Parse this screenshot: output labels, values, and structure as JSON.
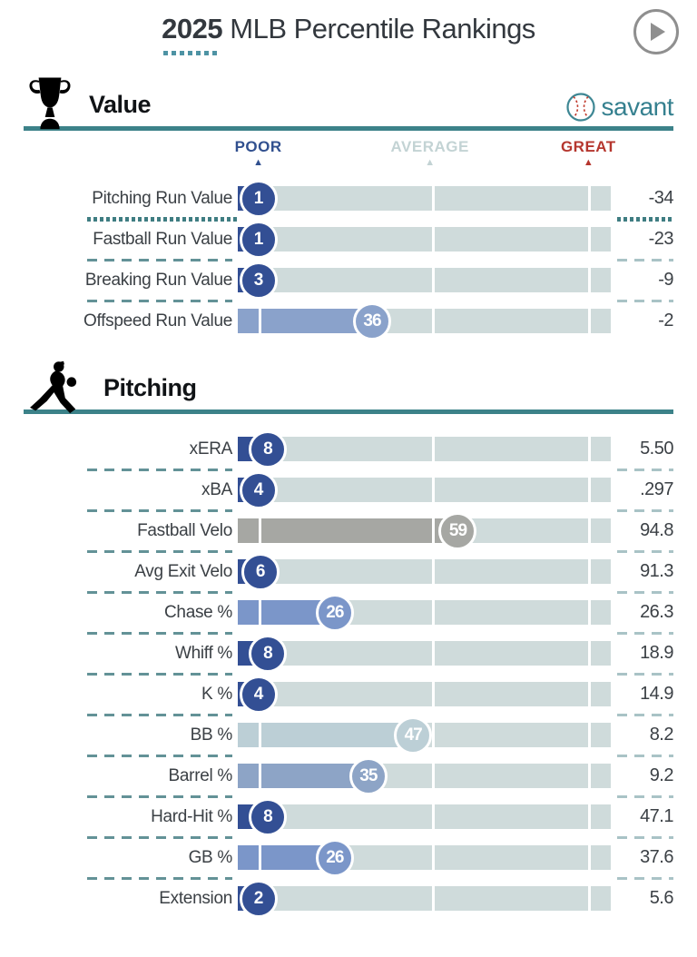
{
  "header": {
    "title_year": "2025",
    "title_rest": " MLB Percentile Rankings"
  },
  "branding": {
    "savant_label": "savant"
  },
  "legend": {
    "poor": "POOR",
    "average": "AVERAGE",
    "great": "GREAT"
  },
  "colors": {
    "poor_navy": "#334f94",
    "mid_blue": "#7b96c9",
    "muted_blue": "#8da4c6",
    "pale_blue": "#bccfd6",
    "average_gray": "#a6a7a3",
    "track": "#cfdbdb",
    "teal_rule": "#3c8289",
    "great_red": "#b5362e"
  },
  "sections": [
    {
      "title": "Value",
      "icon": "trophy-icon",
      "rows": [
        {
          "label": "Pitching Run Value",
          "percentile": 1,
          "value": "-34",
          "color": "#334f94",
          "dotted_separator": true
        },
        {
          "label": "Fastball Run Value",
          "percentile": 1,
          "value": "-23",
          "color": "#334f94"
        },
        {
          "label": "Breaking Run Value",
          "percentile": 3,
          "value": "-9",
          "color": "#334f94"
        },
        {
          "label": "Offspeed Run Value",
          "percentile": 36,
          "value": "-2",
          "color": "#8aa2cb"
        }
      ]
    },
    {
      "title": "Pitching",
      "icon": "pitcher-icon",
      "rows": [
        {
          "label": "xERA",
          "percentile": 8,
          "value": "5.50",
          "color": "#334f94"
        },
        {
          "label": "xBA",
          "percentile": 4,
          "value": ".297",
          "color": "#334f94"
        },
        {
          "label": "Fastball Velo",
          "percentile": 59,
          "value": "94.8",
          "color": "#a6a7a3"
        },
        {
          "label": "Avg Exit Velo",
          "percentile": 6,
          "value": "91.3",
          "color": "#334f94"
        },
        {
          "label": "Chase %",
          "percentile": 26,
          "value": "26.3",
          "color": "#7b96c9"
        },
        {
          "label": "Whiff %",
          "percentile": 8,
          "value": "18.9",
          "color": "#334f94"
        },
        {
          "label": "K %",
          "percentile": 4,
          "value": "14.9",
          "color": "#334f94"
        },
        {
          "label": "BB %",
          "percentile": 47,
          "value": "8.2",
          "color": "#bccfd6"
        },
        {
          "label": "Barrel %",
          "percentile": 35,
          "value": "9.2",
          "color": "#8da4c6"
        },
        {
          "label": "Hard-Hit %",
          "percentile": 8,
          "value": "47.1",
          "color": "#334f94"
        },
        {
          "label": "GB %",
          "percentile": 26,
          "value": "37.6",
          "color": "#7b96c9"
        },
        {
          "label": "Extension",
          "percentile": 2,
          "value": "5.6",
          "color": "#334f94"
        }
      ]
    }
  ],
  "chart_data": [
    {
      "type": "bar",
      "title": "Value",
      "categories": [
        "Pitching Run Value",
        "Fastball Run Value",
        "Breaking Run Value",
        "Offspeed Run Value"
      ],
      "series": [
        {
          "name": "percentile",
          "values": [
            1,
            1,
            3,
            36
          ]
        },
        {
          "name": "raw_value",
          "values": [
            -34,
            -23,
            -9,
            -2
          ]
        }
      ],
      "xlabel": "percentile",
      "xlim": [
        0,
        100
      ],
      "legend": [
        "POOR",
        "AVERAGE",
        "GREAT"
      ],
      "legend_positions_pct": [
        5.5,
        51.5,
        94
      ]
    },
    {
      "type": "bar",
      "title": "Pitching",
      "categories": [
        "xERA",
        "xBA",
        "Fastball Velo",
        "Avg Exit Velo",
        "Chase %",
        "Whiff %",
        "K %",
        "BB %",
        "Barrel %",
        "Hard-Hit %",
        "GB %",
        "Extension"
      ],
      "series": [
        {
          "name": "percentile",
          "values": [
            8,
            4,
            59,
            6,
            26,
            8,
            4,
            47,
            35,
            8,
            26,
            2
          ]
        },
        {
          "name": "raw_value",
          "values": [
            "5.50",
            ".297",
            "94.8",
            "91.3",
            "26.3",
            "18.9",
            "14.9",
            "8.2",
            "9.2",
            "47.1",
            "37.6",
            "5.6"
          ]
        }
      ],
      "xlabel": "percentile",
      "xlim": [
        0,
        100
      ]
    }
  ]
}
